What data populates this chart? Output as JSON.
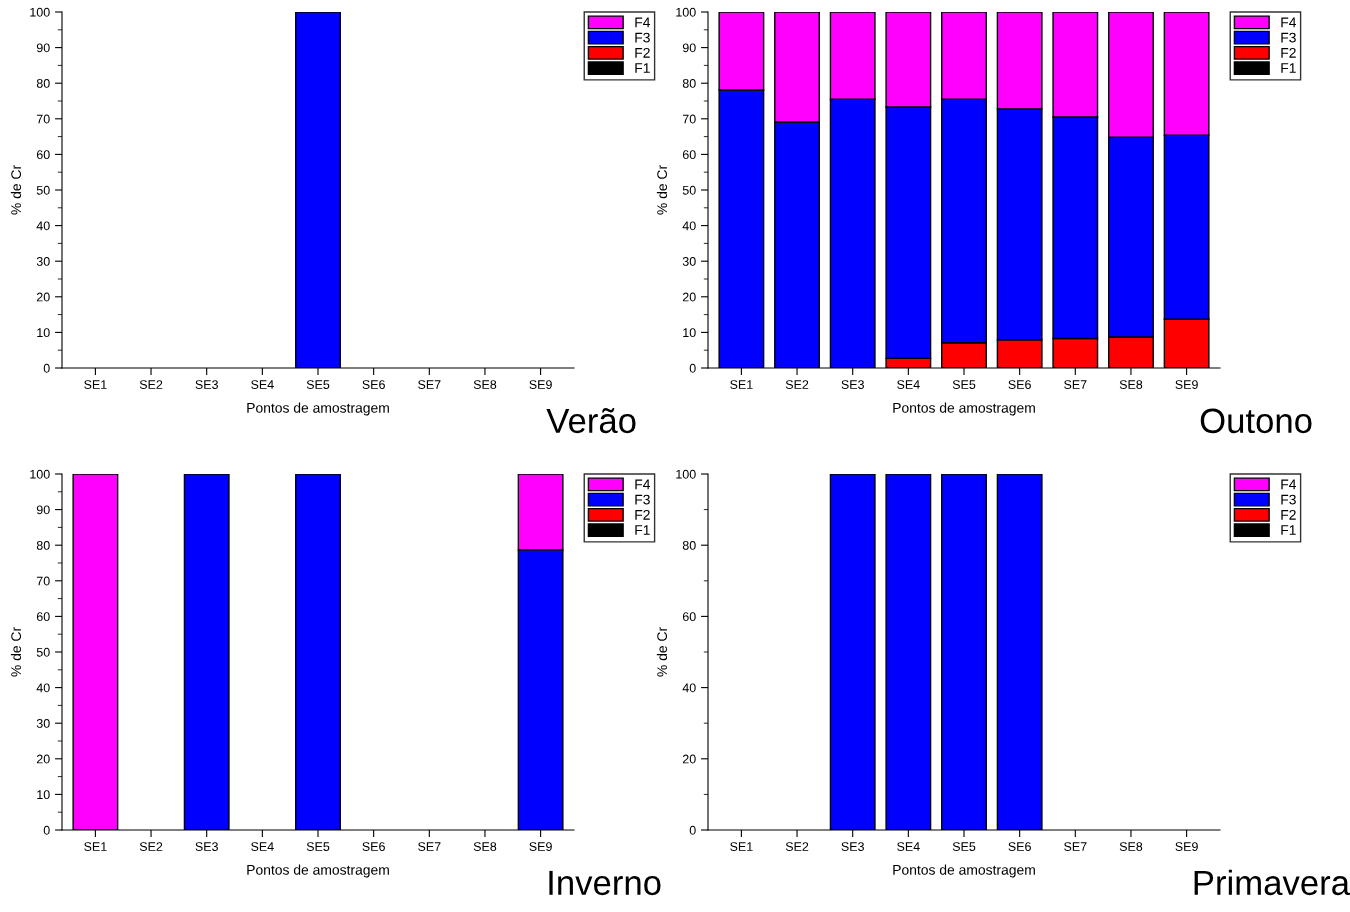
{
  "chart_data": [
    {
      "type": "bar",
      "title": "Verão",
      "xlabel": "Pontos de amostragem",
      "ylabel": "% de Cr",
      "stacked": true,
      "legend": "top right",
      "categories": [
        "SE1",
        "SE2",
        "SE3",
        "SE4",
        "SE5",
        "SE6",
        "SE7",
        "SE8",
        "SE9"
      ],
      "ylim": [
        0,
        100
      ],
      "yticks": [
        0,
        10,
        20,
        30,
        40,
        50,
        60,
        70,
        80,
        90,
        100
      ],
      "series": [
        {
          "name": "F1",
          "color": "#000000",
          "values": [
            0,
            0,
            0,
            0,
            0,
            0,
            0,
            0,
            0
          ]
        },
        {
          "name": "F2",
          "color": "#ff0000",
          "values": [
            0,
            0,
            0,
            0,
            0,
            0,
            0,
            0,
            0
          ]
        },
        {
          "name": "F3",
          "color": "#0000ff",
          "values": [
            0,
            0,
            0,
            0,
            100,
            0,
            0,
            0,
            0
          ]
        },
        {
          "name": "F4",
          "color": "#ff00ff",
          "values": [
            0,
            0,
            0,
            0,
            0,
            0,
            0,
            0,
            0
          ]
        }
      ]
    },
    {
      "type": "bar",
      "title": "Outono",
      "xlabel": "Pontos de amostragem",
      "ylabel": "% de Cr",
      "stacked": true,
      "legend": "top right",
      "categories": [
        "SE1",
        "SE2",
        "SE3",
        "SE4",
        "SE5",
        "SE6",
        "SE7",
        "SE8",
        "SE9"
      ],
      "ylim": [
        0,
        100
      ],
      "yticks": [
        0,
        10,
        20,
        30,
        40,
        50,
        60,
        70,
        80,
        90,
        100
      ],
      "series": [
        {
          "name": "F1",
          "color": "#000000",
          "values": [
            0,
            0,
            0,
            0,
            0,
            0,
            0,
            0,
            0
          ]
        },
        {
          "name": "F2",
          "color": "#ff0000",
          "values": [
            0,
            0,
            0,
            2.7,
            7.1,
            7.9,
            8.3,
            8.7,
            13.7
          ]
        },
        {
          "name": "F3",
          "color": "#0000ff",
          "values": [
            78.1,
            69.1,
            75.5,
            70.6,
            68.4,
            64.9,
            62.2,
            56.1,
            51.7
          ]
        },
        {
          "name": "F4",
          "color": "#ff00ff",
          "values": [
            21.9,
            30.9,
            24.5,
            26.7,
            24.5,
            27.2,
            29.5,
            35.2,
            34.6
          ]
        }
      ]
    },
    {
      "type": "bar",
      "title": "Inverno",
      "xlabel": "Pontos de amostragem",
      "ylabel": "% de Cr",
      "stacked": true,
      "legend": "top right",
      "categories": [
        "SE1",
        "SE2",
        "SE3",
        "SE4",
        "SE5",
        "SE6",
        "SE7",
        "SE8",
        "SE9"
      ],
      "ylim": [
        0,
        100
      ],
      "yticks": [
        0,
        10,
        20,
        30,
        40,
        50,
        60,
        70,
        80,
        90,
        100
      ],
      "series": [
        {
          "name": "F1",
          "color": "#000000",
          "values": [
            0,
            0,
            0,
            0,
            0,
            0,
            0,
            0,
            0
          ]
        },
        {
          "name": "F2",
          "color": "#ff0000",
          "values": [
            0,
            0,
            0,
            0,
            0,
            0,
            0,
            0,
            0
          ]
        },
        {
          "name": "F3",
          "color": "#0000ff",
          "values": [
            0,
            0,
            100,
            0,
            100,
            0,
            0,
            0,
            78.7
          ]
        },
        {
          "name": "F4",
          "color": "#ff00ff",
          "values": [
            100,
            0,
            0,
            0,
            0,
            0,
            0,
            0,
            21.3
          ]
        }
      ]
    },
    {
      "type": "bar",
      "title": "Primavera",
      "xlabel": "Pontos de amostragem",
      "ylabel": "% de Cr",
      "stacked": true,
      "legend": "top right",
      "categories": [
        "SE1",
        "SE2",
        "SE3",
        "SE4",
        "SE5",
        "SE6",
        "SE7",
        "SE8",
        "SE9"
      ],
      "ylim": [
        0,
        100
      ],
      "yticks": [
        0,
        20,
        40,
        60,
        80,
        100
      ],
      "series": [
        {
          "name": "F1",
          "color": "#000000",
          "values": [
            0,
            0,
            0,
            0,
            0,
            0,
            0,
            0,
            0
          ]
        },
        {
          "name": "F2",
          "color": "#ff0000",
          "values": [
            0,
            0,
            0,
            0,
            0,
            0,
            0,
            0,
            0
          ]
        },
        {
          "name": "F3",
          "color": "#0000ff",
          "values": [
            0,
            0,
            100,
            100,
            100,
            100,
            0,
            0,
            0
          ]
        },
        {
          "name": "F4",
          "color": "#ff00ff",
          "values": [
            0,
            0,
            0,
            0,
            0,
            0,
            0,
            0,
            0
          ]
        }
      ]
    }
  ]
}
